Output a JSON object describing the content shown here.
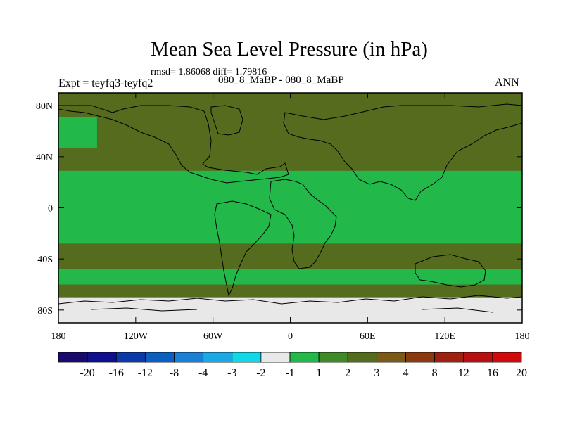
{
  "chart_data": {
    "type": "heatmap",
    "title": "Mean Sea Level Pressure (in hPa)",
    "stats_line": "rmsd= 1.86068 diff= 1.79816",
    "left_label": "Expt = teyfq3-teyfq2",
    "subtitle": "080_8_MaBP - 080_8_MaBP",
    "right_label": "ANN",
    "x_range": [
      -180,
      180
    ],
    "y_range": [
      -90,
      90
    ],
    "x_ticks": [
      {
        "value": -180,
        "label": "180"
      },
      {
        "value": -120,
        "label": "120W"
      },
      {
        "value": -60,
        "label": "60W"
      },
      {
        "value": 0,
        "label": "0"
      },
      {
        "value": 60,
        "label": "60E"
      },
      {
        "value": 120,
        "label": "120E"
      },
      {
        "value": 180,
        "label": "180"
      }
    ],
    "y_ticks": [
      {
        "value": 80,
        "label": "80N"
      },
      {
        "value": 40,
        "label": "40N"
      },
      {
        "value": 0,
        "label": "0"
      },
      {
        "value": -40,
        "label": "40S"
      },
      {
        "value": -80,
        "label": "80S"
      }
    ],
    "colorbar": {
      "colors": [
        "#1a0a6e",
        "#10108f",
        "#0a3aa8",
        "#0a5fc0",
        "#1a7fd6",
        "#1aa8e6",
        "#10d8e8",
        "#e8e8e8",
        "#22b84a",
        "#3e8a26",
        "#556b1e",
        "#7a5a16",
        "#8a3a0e",
        "#a02010",
        "#b81010",
        "#d00a0a"
      ],
      "labels": [
        "-20",
        "-16",
        "-12",
        "-8",
        "-4",
        "-3",
        "-2",
        "-1",
        "1",
        "2",
        "3",
        "4",
        "8",
        "12",
        "16",
        "20"
      ]
    },
    "regions": [
      {
        "level": "3 to 4",
        "color": "#556b1e",
        "lat": [
          -90,
          90
        ],
        "lon": [
          -180,
          180
        ]
      },
      {
        "level": "2 to 3",
        "color": "#22b84a",
        "lat": [
          -28,
          29
        ],
        "lon": [
          -180,
          180
        ]
      },
      {
        "level": "2 to 3",
        "color": "#22b84a",
        "lat": [
          47,
          71
        ],
        "lon": [
          -180,
          -150
        ]
      },
      {
        "level": "2 to 3",
        "color": "#22b84a",
        "lat": [
          -60,
          -48
        ],
        "lon": [
          -180,
          180
        ]
      },
      {
        "level": "3 to 4",
        "color": "#556b1e",
        "lat": [
          80,
          87
        ],
        "lon": [
          10,
          95
        ]
      },
      {
        "level": "-1 to 1",
        "color": "#e8e8e8",
        "lat": [
          -90,
          -70
        ],
        "lon": [
          -180,
          180
        ]
      }
    ]
  }
}
